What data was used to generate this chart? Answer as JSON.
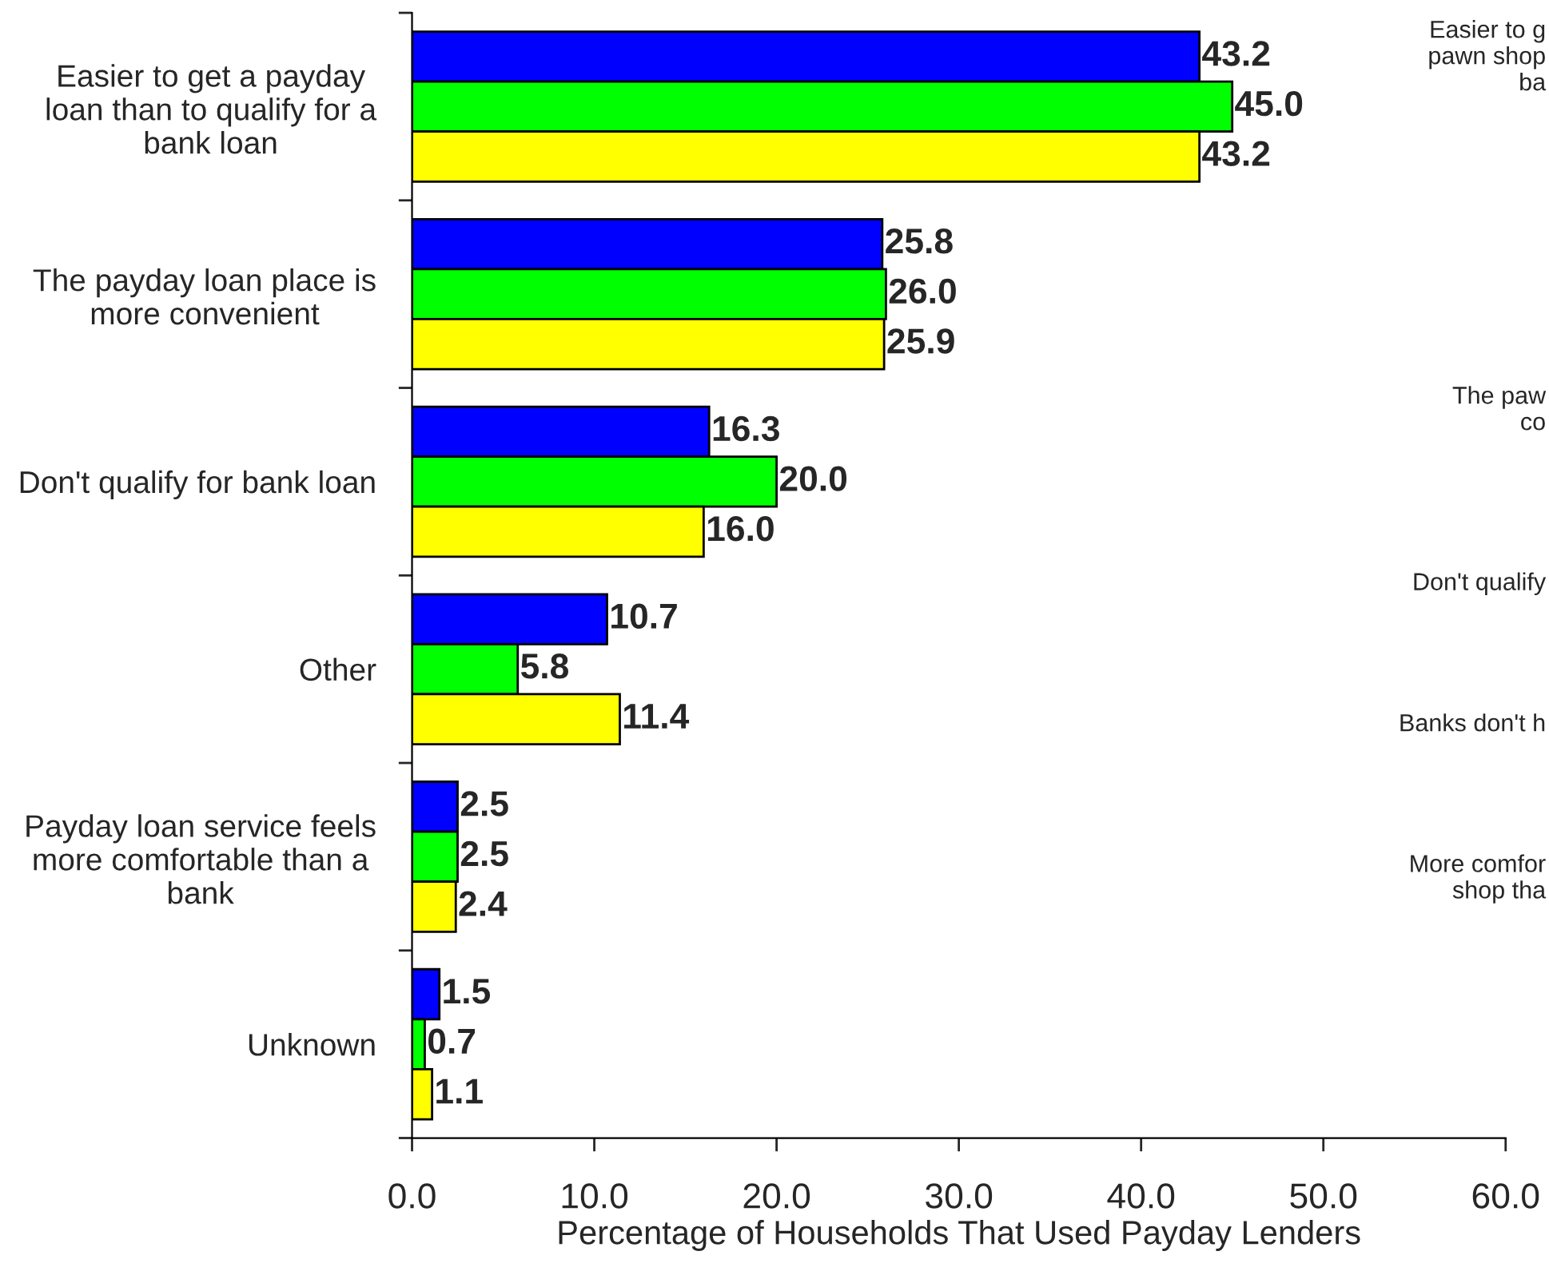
{
  "chart_data": {
    "type": "bar",
    "orientation": "horizontal",
    "categories": [
      "Easier to get a payday\nloan than to qualify for a\nbank loan",
      "The payday loan place is\nmore convenient",
      "Don't qualify for bank loan",
      "Other",
      "Payday loan service feels\nmore comfortable than a\nbank",
      "Unknown"
    ],
    "series": [
      {
        "color": "#0000ff",
        "values": [
          43.2,
          25.8,
          16.3,
          10.7,
          2.5,
          1.5
        ],
        "value_labels": [
          "43.2",
          "25.8",
          "16.3",
          "10.7",
          "2.5",
          "1.5"
        ]
      },
      {
        "color": "#00ff00",
        "values": [
          45.0,
          26.0,
          20.0,
          5.8,
          2.5,
          0.7
        ],
        "value_labels": [
          "45.0",
          "26.0",
          "20.0",
          "5.8",
          "2.5",
          "0.7"
        ]
      },
      {
        "color": "#ffff00",
        "values": [
          43.2,
          25.9,
          16.0,
          11.4,
          2.4,
          1.1
        ],
        "value_labels": [
          "43.2",
          "25.9",
          "16.0",
          "11.4",
          "2.4",
          "1.1"
        ]
      }
    ],
    "xlabel": "Percentage of Households That Used Payday Lenders",
    "xlim": [
      0,
      60
    ],
    "xticks": [
      {
        "value": 0,
        "label": "0.0"
      },
      {
        "value": 10,
        "label": "10.0"
      },
      {
        "value": 20,
        "label": "20.0"
      },
      {
        "value": 30,
        "label": "30.0"
      },
      {
        "value": 40,
        "label": "40.0"
      },
      {
        "value": 50,
        "label": "50.0"
      },
      {
        "value": 60,
        "label": "60.0"
      }
    ],
    "grid": false,
    "annotations": [
      "Easier to g\npawn shop\nba",
      "The paw\nco",
      "Don't qualify",
      "Banks don't h",
      "More comfor\nshop tha"
    ]
  }
}
